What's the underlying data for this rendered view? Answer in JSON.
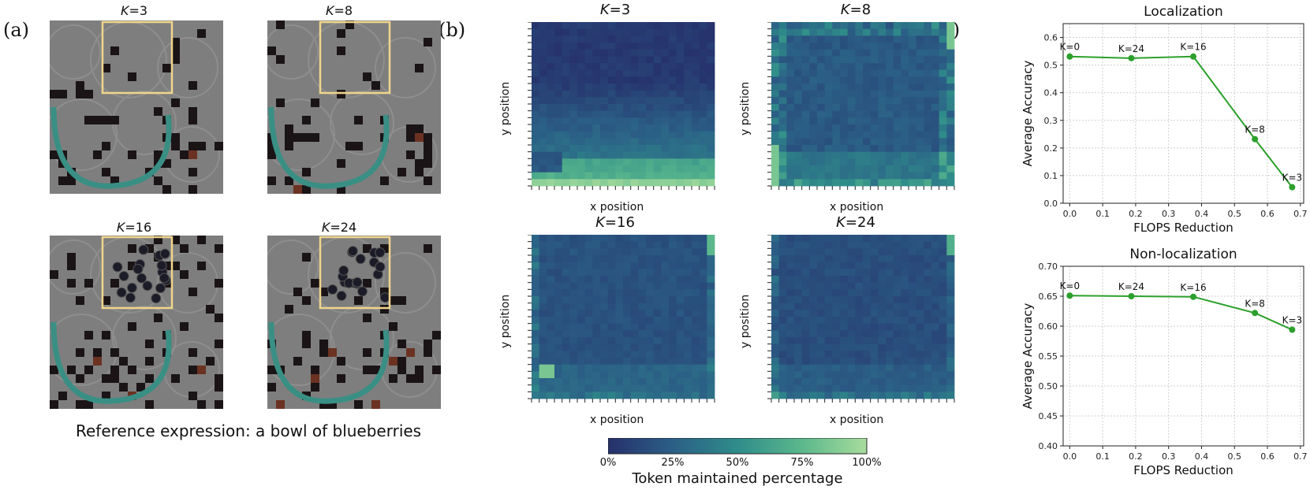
{
  "panel_labels": {
    "a": "(a)",
    "b": "(b)",
    "c": "(c)"
  },
  "panel_a": {
    "tiles": [
      {
        "k_prefix": "K",
        "k_value": "=3"
      },
      {
        "k_prefix": "K",
        "k_value": "=8"
      },
      {
        "k_prefix": "K",
        "k_value": "=16"
      },
      {
        "k_prefix": "K",
        "k_value": "=24"
      }
    ],
    "reference_expression": "Reference expression: a bowl of blueberries"
  },
  "panel_b": {
    "heatmaps": [
      {
        "k_prefix": "K",
        "k_value": "=3",
        "xlabel": "x position",
        "ylabel": "y position"
      },
      {
        "k_prefix": "K",
        "k_value": "=8",
        "xlabel": "x position",
        "ylabel": "y position"
      },
      {
        "k_prefix": "K",
        "k_value": "=16",
        "xlabel": "x position",
        "ylabel": "y position"
      },
      {
        "k_prefix": "K",
        "k_value": "=24",
        "xlabel": "x position",
        "ylabel": "y position"
      }
    ],
    "colorbar": {
      "ticks": [
        "0%",
        "25%",
        "50%",
        "75%",
        "100%"
      ],
      "label": "Token maintained percentage",
      "colors": [
        "#26306b",
        "#2b5f86",
        "#2f8c8a",
        "#5bb88c",
        "#a8dc9c"
      ]
    }
  },
  "chart_data": [
    {
      "type": "line",
      "title": "Localization",
      "xlabel": "FLOPS Reduction",
      "ylabel": "Average Accuracy",
      "xlim": [
        -0.02,
        0.71
      ],
      "ylim": [
        0.0,
        0.65
      ],
      "xticks": [
        "0.0",
        "0.1",
        "0.2",
        "0.3",
        "0.4",
        "0.5",
        "0.6",
        "0.7"
      ],
      "yticks": [
        "0.0",
        "0.1",
        "0.2",
        "0.3",
        "0.4",
        "0.5",
        "0.6"
      ],
      "grid": true,
      "color": "#2ca02c",
      "points": [
        {
          "x": 0.0,
          "y": 0.531,
          "label": "K=0"
        },
        {
          "x": 0.187,
          "y": 0.525,
          "label": "K=24"
        },
        {
          "x": 0.375,
          "y": 0.531,
          "label": "K=16"
        },
        {
          "x": 0.562,
          "y": 0.232,
          "label": "K=8"
        },
        {
          "x": 0.675,
          "y": 0.058,
          "label": "K=3"
        }
      ]
    },
    {
      "type": "line",
      "title": "Non-localization",
      "xlabel": "FLOPS Reduction",
      "ylabel": "Average Accuracy",
      "xlim": [
        -0.02,
        0.71
      ],
      "ylim": [
        0.4,
        0.7
      ],
      "xticks": [
        "0.0",
        "0.1",
        "0.2",
        "0.3",
        "0.4",
        "0.5",
        "0.6",
        "0.7"
      ],
      "yticks": [
        "0.40",
        "0.45",
        "0.50",
        "0.55",
        "0.60",
        "0.65",
        "0.70"
      ],
      "grid": true,
      "color": "#2ca02c",
      "points": [
        {
          "x": 0.0,
          "y": 0.651,
          "label": "K=0"
        },
        {
          "x": 0.187,
          "y": 0.65,
          "label": "K=24"
        },
        {
          "x": 0.375,
          "y": 0.649,
          "label": "K=16"
        },
        {
          "x": 0.562,
          "y": 0.622,
          "label": "K=8"
        },
        {
          "x": 0.675,
          "y": 0.594,
          "label": "K=3"
        }
      ]
    }
  ]
}
